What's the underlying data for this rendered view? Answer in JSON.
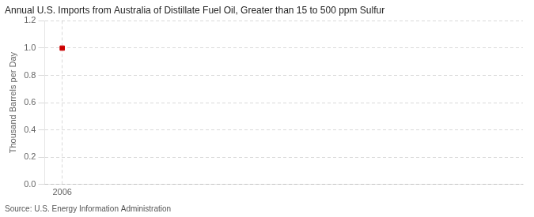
{
  "chart_data": {
    "type": "scatter",
    "title": "Annual U.S. Imports from Australia of Distillate Fuel Oil, Greater than 15 to 500 ppm Sulfur",
    "y_label": "Thousand Barrels per Day",
    "annotations": [
      "Source: U.S. Energy Information Administration"
    ],
    "x": [
      2006
    ],
    "values": [
      1.0
    ],
    "color": "#cc0000",
    "marker": "square",
    "xlim": [
      2005.6,
      2016.5
    ],
    "xticks": [
      2006
    ],
    "ylim": [
      0.0,
      1.2
    ],
    "yticks": [
      {
        "value": 0.0,
        "label": "0.0"
      },
      0.2,
      0.4,
      0.6,
      0.8,
      {
        "value": 1.0,
        "label": "1.0"
      },
      1.2
    ],
    "grid": true
  }
}
